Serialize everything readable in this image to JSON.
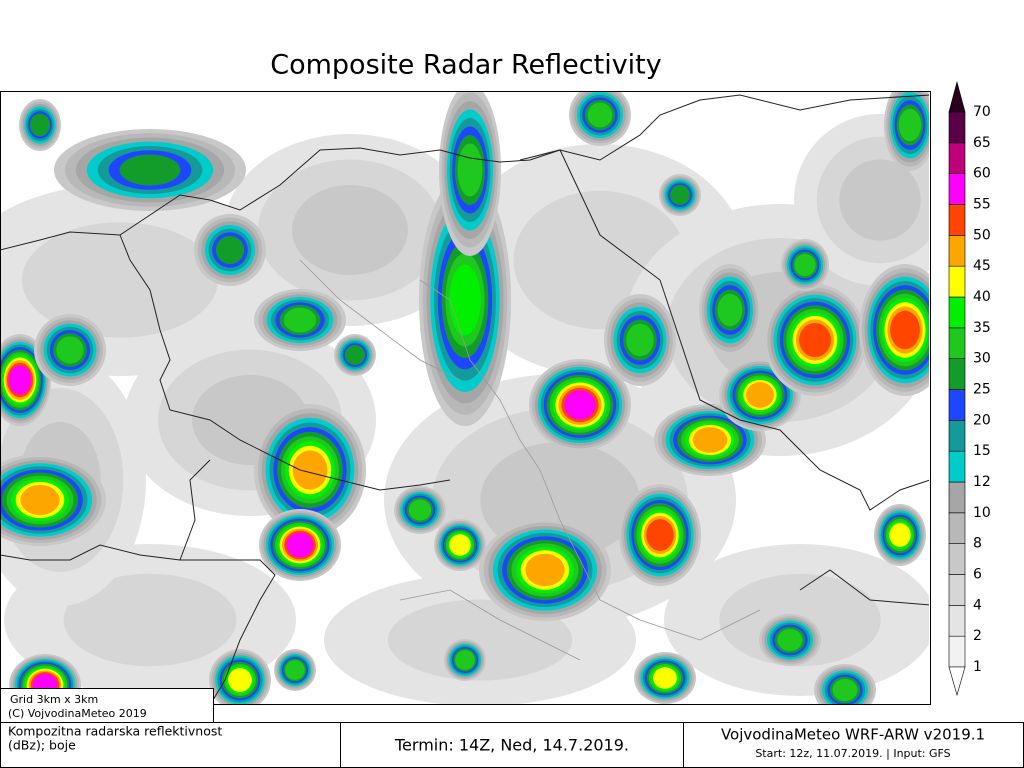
{
  "title": "Composite Radar Reflectivity",
  "colorbar": {
    "levels": [
      1,
      2,
      4,
      6,
      8,
      10,
      12,
      15,
      20,
      25,
      30,
      35,
      40,
      45,
      50,
      55,
      60,
      65,
      70
    ],
    "colors": [
      "#f2f2f2",
      "#e4e4e4",
      "#d6d6d6",
      "#c8c8c8",
      "#b8b8b8",
      "#a6a6a6",
      "#00cccc",
      "#159a9a",
      "#1e46ff",
      "#129c2a",
      "#1ec81e",
      "#00f000",
      "#ffff00",
      "#ffa500",
      "#ff4500",
      "#ff00ff",
      "#c0007a",
      "#5a0048"
    ],
    "over_color": "#2a0020",
    "under_color": "#ffffff"
  },
  "grid_note": {
    "line1": "Grid 3km x 3km",
    "line2": "(C) VojvodinaMeteo 2019"
  },
  "footer": {
    "field_line1": "Kompozitna radarska reflektivnost",
    "field_line2": "(dBz); boje",
    "valid_time": "Termin: 14Z, Ned, 14.7.2019.",
    "model": "VojvodinaMeteo WRF-ARW v2019.1",
    "run_info": "Start: 12z, 11.07.2019. | Input: GFS"
  }
}
